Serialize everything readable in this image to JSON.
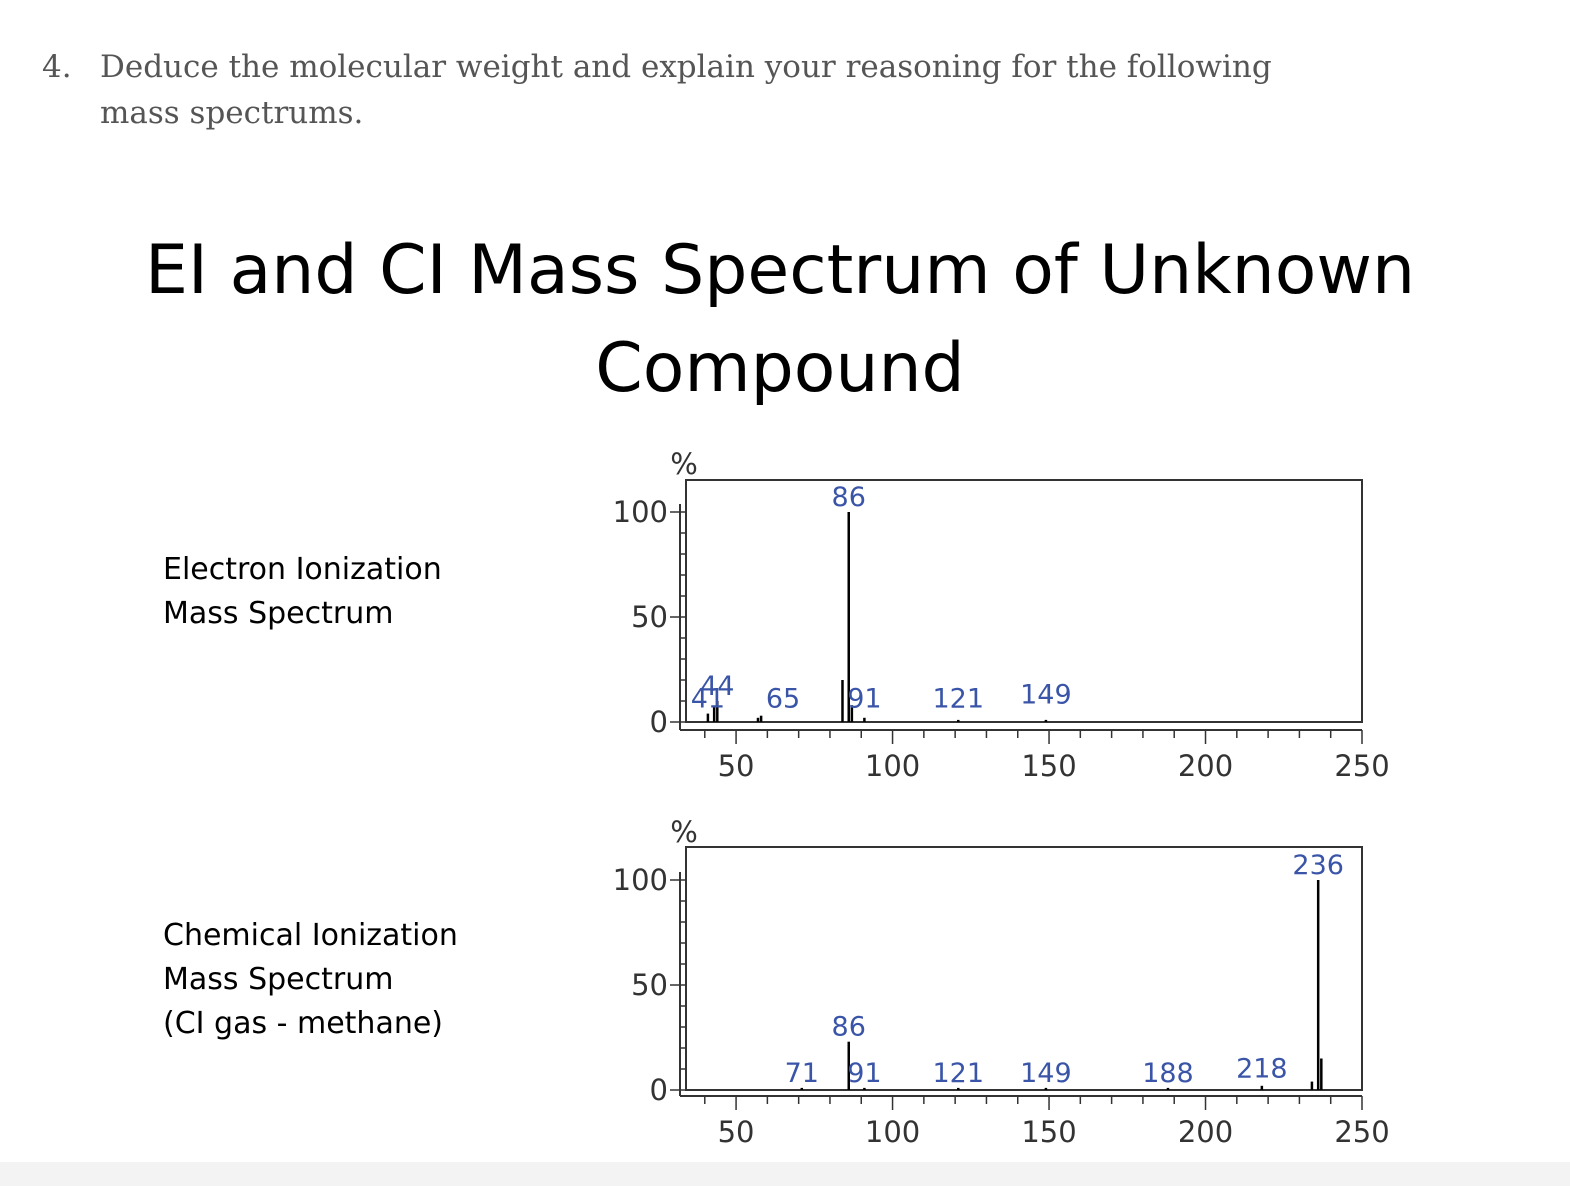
{
  "question": {
    "number": "4.",
    "text": "Deduce the molecular weight and explain your reasoning for the following mass spectrums."
  },
  "slide_title": "EI and CI Mass Spectrum of Unknown Compound",
  "labels": {
    "ei": "Electron Ionization\nMass Spectrum",
    "ci": "Chemical Ionization\nMass Spectrum\n(CI gas - methane)"
  },
  "colors": {
    "peak_label": "#3a55a8",
    "axis": "#333333",
    "bars": "#000000"
  },
  "chart_data": [
    {
      "type": "bar",
      "name": "ei",
      "title": "",
      "xlabel": "",
      "ylabel": "%",
      "xlim": [
        34,
        250
      ],
      "ylim": [
        0,
        100
      ],
      "xticks": [
        50,
        100,
        150,
        200,
        250
      ],
      "yticks": [
        0,
        50,
        100
      ],
      "peaks": [
        {
          "x": 41,
          "y": 4
        },
        {
          "x": 43,
          "y": 7
        },
        {
          "x": 44,
          "y": 10
        },
        {
          "x": 57,
          "y": 2
        },
        {
          "x": 58,
          "y": 3
        },
        {
          "x": 84,
          "y": 20
        },
        {
          "x": 86,
          "y": 100
        },
        {
          "x": 87,
          "y": 8
        },
        {
          "x": 91,
          "y": 2
        },
        {
          "x": 121,
          "y": 1
        },
        {
          "x": 149,
          "y": 1
        }
      ],
      "peak_labels": [
        {
          "text": "44",
          "x": 44,
          "y": 10
        },
        {
          "text": "41",
          "x": 41,
          "y": 4
        },
        {
          "text": "65",
          "x": 65,
          "y": 4
        },
        {
          "text": "86",
          "x": 86,
          "y": 100
        },
        {
          "text": "91",
          "x": 91,
          "y": 4
        },
        {
          "text": "121",
          "x": 121,
          "y": 4
        },
        {
          "text": "149",
          "x": 149,
          "y": 6
        }
      ]
    },
    {
      "type": "bar",
      "name": "ci",
      "title": "",
      "xlabel": "",
      "ylabel": "%",
      "xlim": [
        34,
        250
      ],
      "ylim": [
        0,
        100
      ],
      "xticks": [
        50,
        100,
        150,
        200,
        250
      ],
      "yticks": [
        0,
        50,
        100
      ],
      "peaks": [
        {
          "x": 71,
          "y": 1
        },
        {
          "x": 86,
          "y": 23
        },
        {
          "x": 91,
          "y": 1
        },
        {
          "x": 121,
          "y": 1
        },
        {
          "x": 149,
          "y": 1
        },
        {
          "x": 188,
          "y": 1
        },
        {
          "x": 218,
          "y": 2
        },
        {
          "x": 234,
          "y": 4
        },
        {
          "x": 236,
          "y": 100
        },
        {
          "x": 237,
          "y": 15
        }
      ],
      "peak_labels": [
        {
          "text": "236",
          "x": 236,
          "y": 100
        },
        {
          "text": "86",
          "x": 86,
          "y": 23
        },
        {
          "text": "71",
          "x": 71,
          "y": 1
        },
        {
          "text": "91",
          "x": 91,
          "y": 1
        },
        {
          "text": "121",
          "x": 121,
          "y": 1
        },
        {
          "text": "149",
          "x": 149,
          "y": 1
        },
        {
          "text": "188",
          "x": 188,
          "y": 1
        },
        {
          "text": "218",
          "x": 218,
          "y": 3
        }
      ]
    }
  ]
}
